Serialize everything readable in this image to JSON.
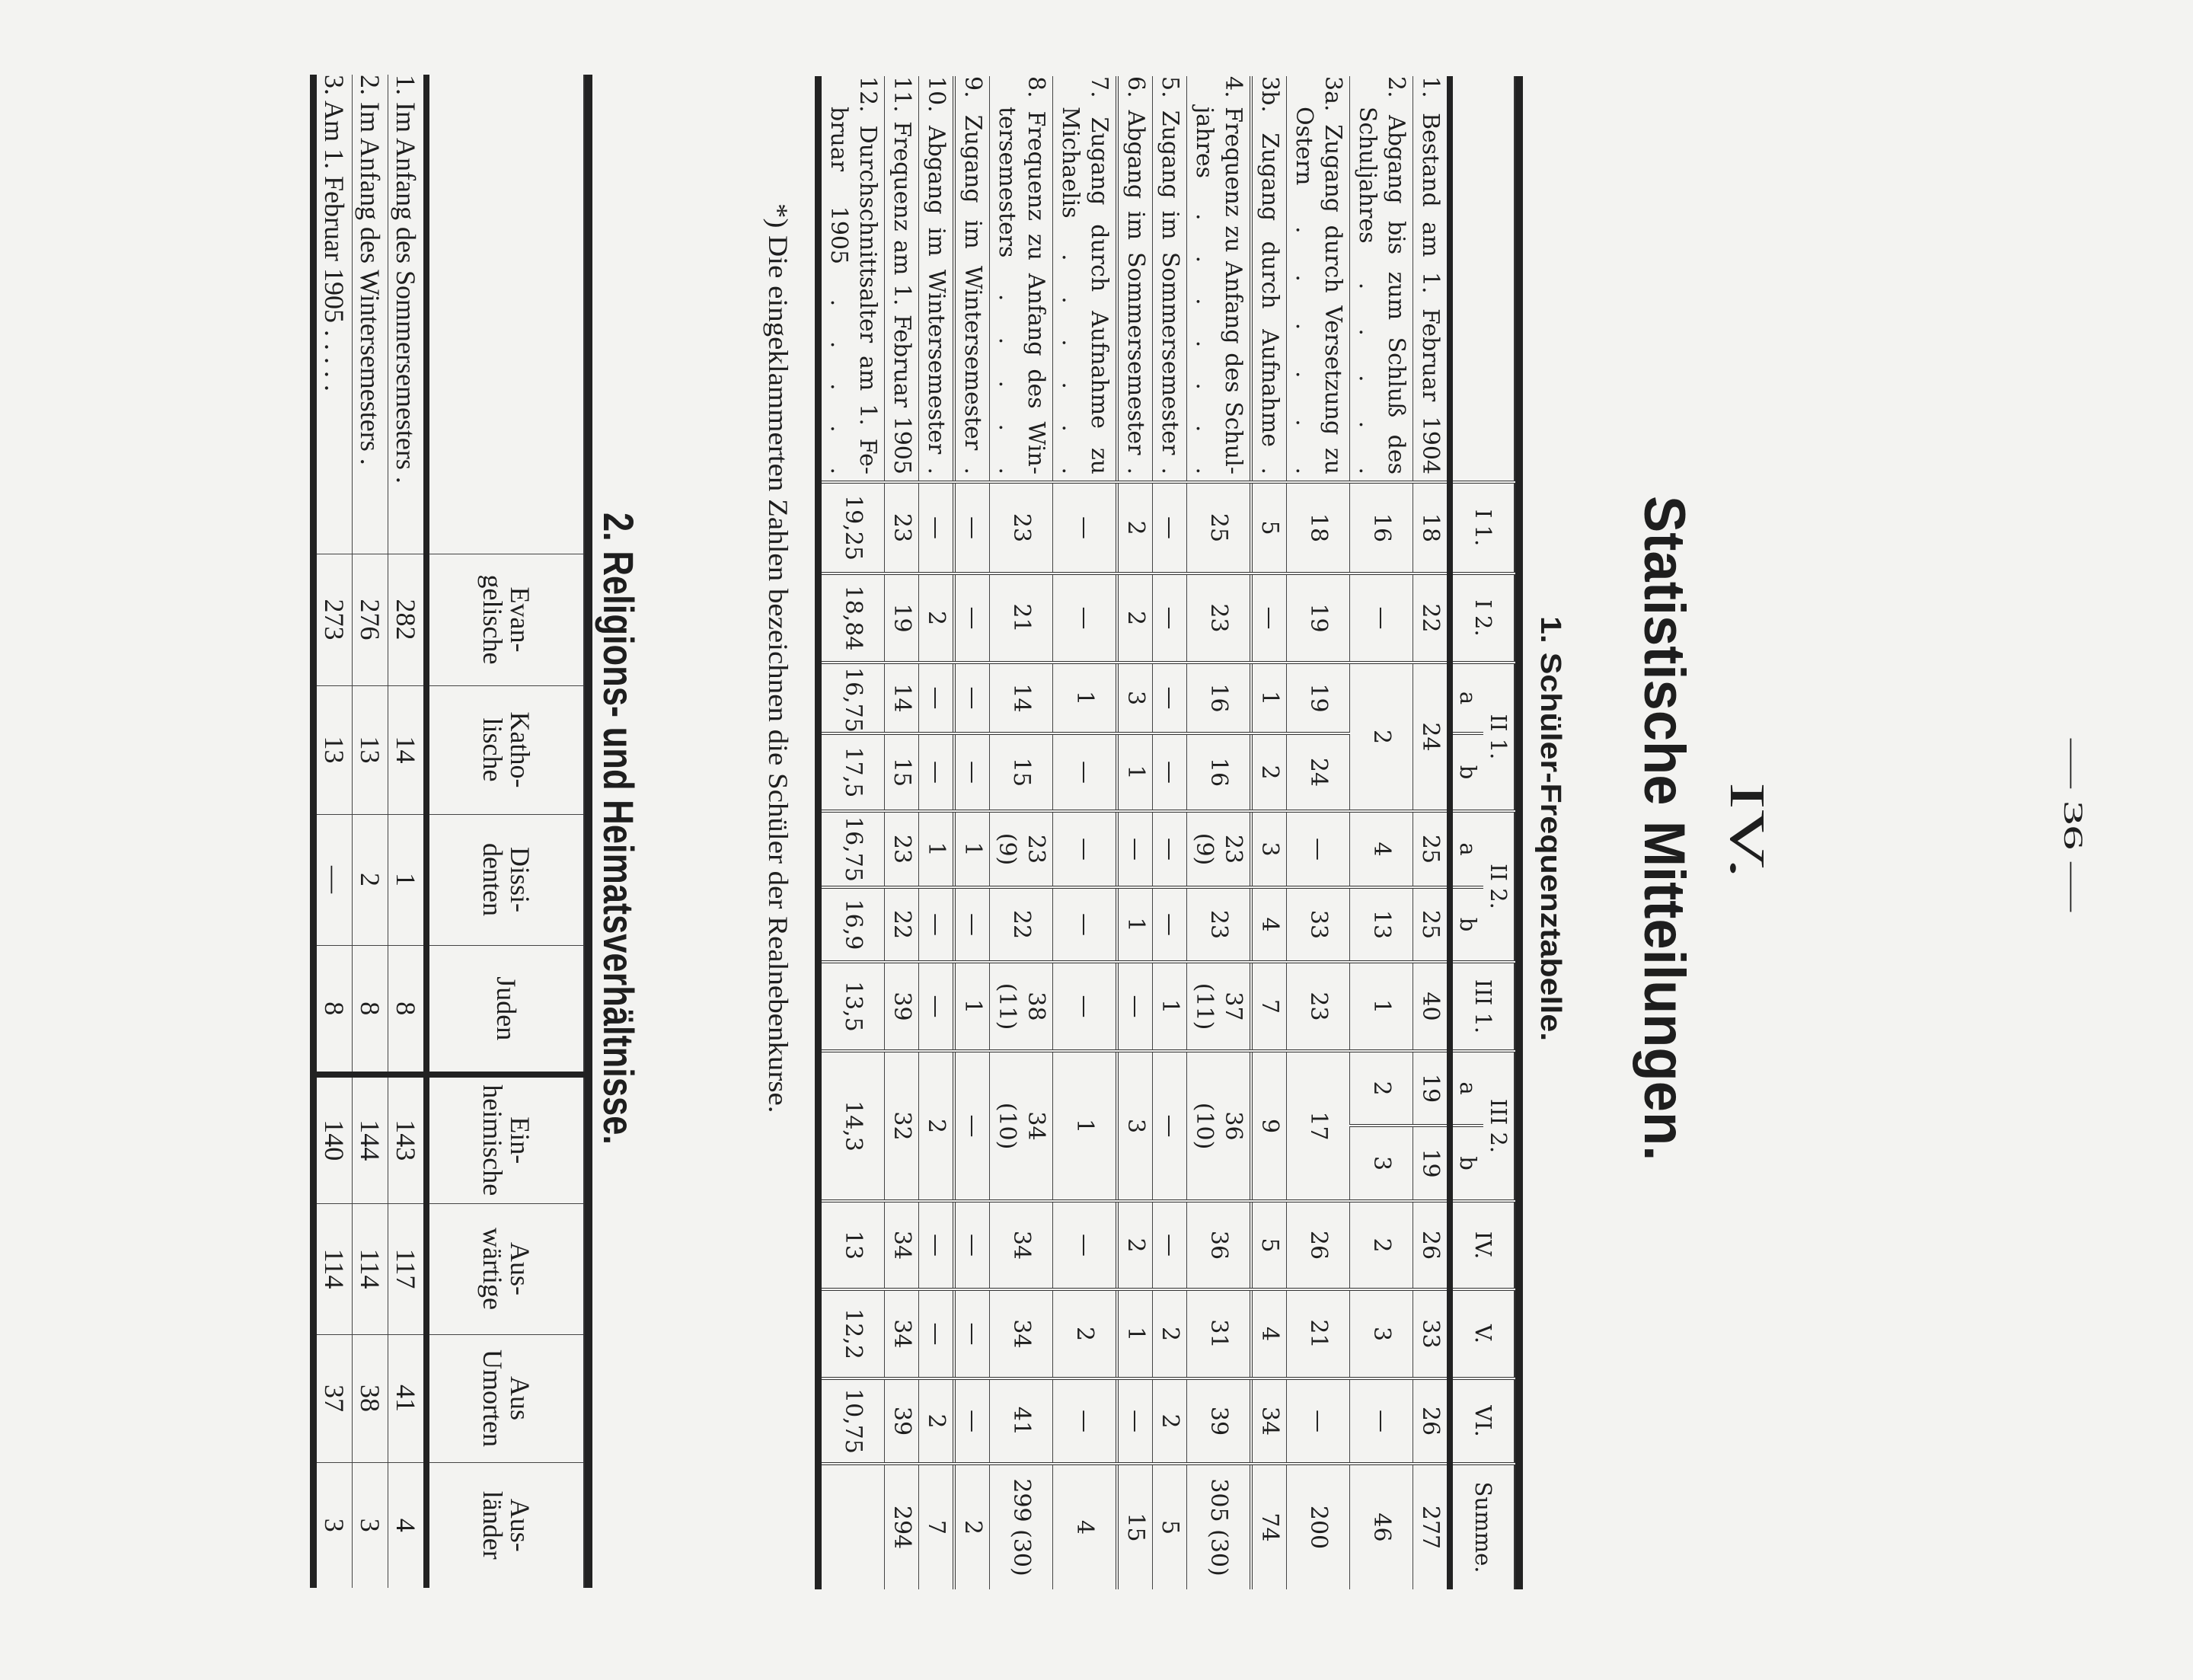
{
  "page_number": "— 36 —",
  "section_number": "IV.",
  "title": "Statistische Mitteilungen.",
  "subtitle": "1. Schüler-Frequenztabelle.",
  "table1": {
    "columns": [
      "I 1.",
      "I 2.",
      "II 1.",
      "II 2.",
      "III 1.",
      "III 2.",
      "IV.",
      "V.",
      "VI.",
      "Summe."
    ],
    "subcolumns": [
      "a",
      "b"
    ],
    "rows": [
      {
        "label": [
          "1. Bestand am 1. Februar 1904"
        ],
        "cells": [
          "18",
          "22",
          "24",
          null,
          "25",
          "25",
          "40",
          "19",
          "19",
          "26",
          "33",
          "26",
          "277"
        ]
      },
      {
        "label": [
          "2. Abgang bis zum Schluß des",
          "Schuljahres . . . . ."
        ],
        "cells": [
          "16",
          "—",
          "2",
          null,
          "4",
          "13",
          "1",
          "2",
          "3",
          "2",
          "3",
          "—",
          "46"
        ]
      },
      {
        "label": [
          "3a. Zugang durch Versetzung zu",
          "Ostern . . . . . ."
        ],
        "cells": [
          "18",
          "19",
          "19",
          "24",
          "—",
          "33",
          "23",
          "17",
          null,
          "26",
          "21",
          "—",
          "200"
        ]
      },
      {
        "label": [
          "3b. Zugang durch Aufnahme ."
        ],
        "cells": [
          "5",
          "—",
          "1",
          "2",
          "3",
          "4",
          "7",
          "9",
          null,
          "5",
          "4",
          "34",
          "74"
        ]
      },
      {
        "label": [
          "4. Frequenz zu Anfang des Schul-",
          "jahres . . . . . . ."
        ],
        "cells": [
          "25",
          "23",
          "16",
          "16",
          "23 (9)",
          "23",
          "37 (11)",
          "36 (10)",
          null,
          "36",
          "31",
          "39",
          "305 (30)"
        ]
      },
      {
        "label": [
          "5. Zugang im Sommersemester ."
        ],
        "cells": [
          "—",
          "—",
          "—",
          "—",
          "—",
          "—",
          "1",
          "—",
          null,
          "—",
          "2",
          "2",
          "5"
        ]
      },
      {
        "label": [
          "6. Abgang im Sommersemester ."
        ],
        "cells": [
          "2",
          "2",
          "3",
          "1",
          "—",
          "1",
          "—",
          "3",
          null,
          "2",
          "1",
          "—",
          "15"
        ]
      },
      {
        "label": [
          "7. Zugang durch Aufnahme zu",
          "Michaelis . . . . . ."
        ],
        "cells": [
          "—",
          "—",
          "1",
          "—",
          "—",
          "—",
          "—",
          "1",
          null,
          "—",
          "2",
          "—",
          "4"
        ]
      },
      {
        "label": [
          "8. Frequenz zu Anfang des Win-",
          "tersemesters . . . . ."
        ],
        "cells": [
          "23",
          "21",
          "14",
          "15",
          "23 (9)",
          "22",
          "38 (11)",
          "34 (10)",
          null,
          "34",
          "34",
          "41",
          "299 (30)"
        ]
      },
      {
        "label": [
          "9. Zugang im Wintersemester ."
        ],
        "cells": [
          "—",
          "—",
          "—",
          "—",
          "1",
          "—",
          "1",
          "—",
          null,
          "—",
          "—",
          "—",
          "2"
        ]
      },
      {
        "label": [
          "10. Abgang im Wintersemester ."
        ],
        "cells": [
          "—",
          "2",
          "—",
          "—",
          "1",
          "—",
          "—",
          "2",
          null,
          "—",
          "—",
          "2",
          "7"
        ]
      },
      {
        "label": [
          "11. Frequenz am 1. Februar 1905"
        ],
        "cells": [
          "23",
          "19",
          "14",
          "15",
          "23",
          "22",
          "39",
          "32",
          null,
          "34",
          "34",
          "39",
          "294"
        ]
      },
      {
        "label": [
          "12. Durchschnittsalter am 1. Fe-",
          "bruar 1905 . . . . ."
        ],
        "cells": [
          "19,25",
          "18,84",
          "16,75",
          "17,5",
          "16,75",
          "16,9",
          "13,5",
          "14,3",
          null,
          "13",
          "12,2",
          "10,75",
          ""
        ]
      }
    ]
  },
  "footnote": "*) Die eingeklammerten Zahlen bezeichnen die Schüler der Realnebenkurse.",
  "heading2": "2. Religions- und Heimatsverhältnisse.",
  "table2": {
    "columns": [
      [
        "Evan-",
        "gelische"
      ],
      [
        "Katho-",
        "lische"
      ],
      [
        "Dissi-",
        "denten"
      ],
      [
        "Juden"
      ],
      [
        "Ein-",
        "heimische"
      ],
      [
        "Aus-",
        "wärtige"
      ],
      [
        "Aus",
        "Umorten"
      ],
      [
        "Aus-",
        "länder"
      ]
    ],
    "rows": [
      {
        "label": "1. Im Anfang des Sommersemesters .",
        "cells": [
          "282",
          "14",
          "1",
          "8",
          "143",
          "117",
          "41",
          "4"
        ]
      },
      {
        "label": "2. Im Anfang des Wintersemesters .",
        "cells": [
          "276",
          "13",
          "2",
          "8",
          "144",
          "114",
          "38",
          "3"
        ]
      },
      {
        "label": "3. Am 1. Februar 1905 . . . . .",
        "cells": [
          "273",
          "13",
          "—",
          "8",
          "140",
          "114",
          "37",
          "3"
        ]
      }
    ]
  }
}
